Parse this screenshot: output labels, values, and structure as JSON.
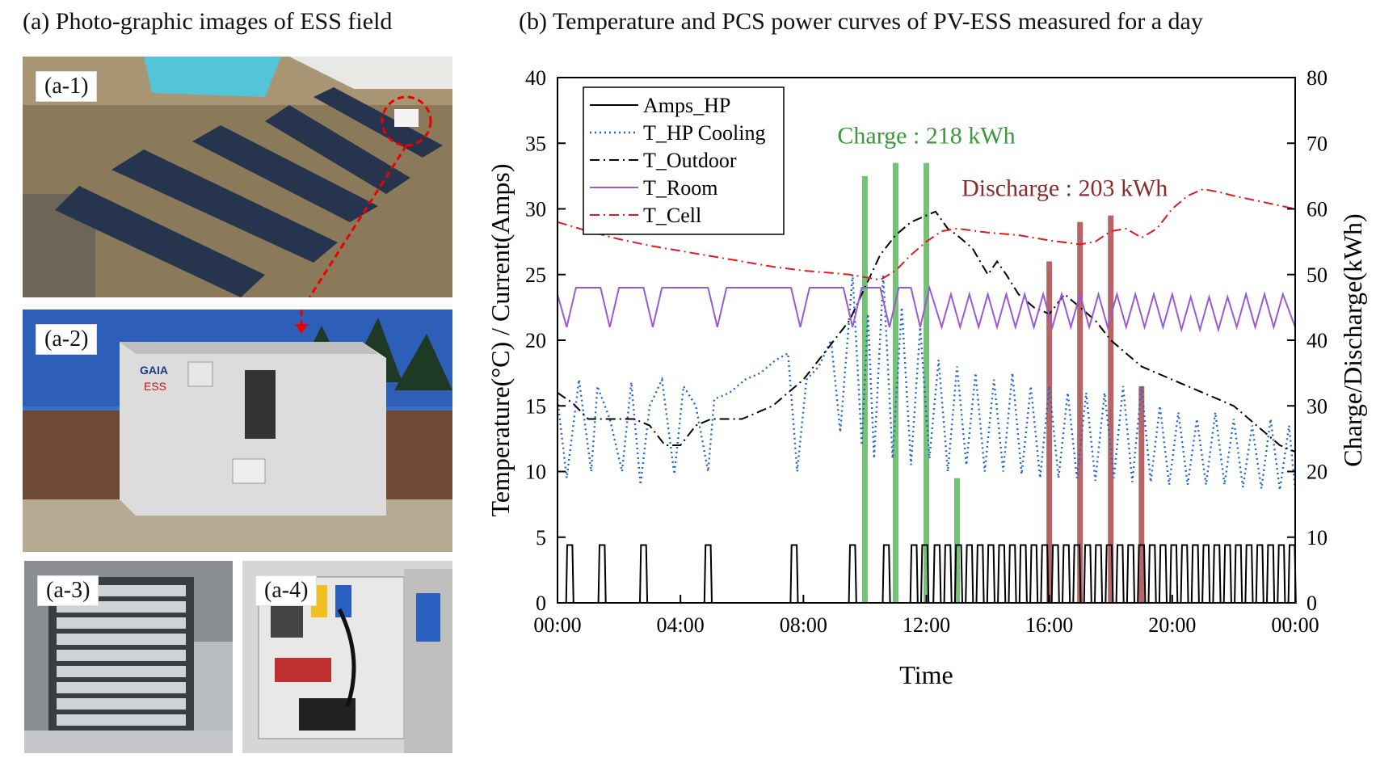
{
  "panel_a": {
    "title": "(a) Photo-graphic images of ESS field",
    "photos": [
      {
        "label": "(a-1)",
        "icon": "solar-farm-aerial-photo"
      },
      {
        "label": "(a-2)",
        "icon": "ess-container-photo",
        "brand": "GAIA",
        "text": "ESS"
      },
      {
        "label": "(a-3)",
        "icon": "battery-rack-photo"
      },
      {
        "label": "(a-4)",
        "icon": "control-panel-photo"
      }
    ]
  },
  "colors": {
    "amps_hp": "#000000",
    "t_hp_cooling": "#1f66d6",
    "t_outdoor": "#000000",
    "t_room": "#9b59d6",
    "t_cell": "#e8171b",
    "charge": "#5cb85c",
    "discharge": "#a84a4a"
  },
  "chart_data": {
    "type": "line",
    "title": "(b) Temperature and PCS power curves of PV-ESS measured for a day",
    "xlabel": "Time",
    "ylabel": "Temperature(°C) / Current(Amps)",
    "y2label": "Charge/Discharge(kWh)",
    "x_ticks": [
      "00:00",
      "04:00",
      "08:00",
      "12:00",
      "16:00",
      "20:00",
      "00:00"
    ],
    "xlim_hours": [
      0,
      24
    ],
    "ylim": [
      0,
      40
    ],
    "y_ticks": [
      "0",
      "5",
      "10",
      "15",
      "20",
      "25",
      "30",
      "35",
      "40"
    ],
    "y2lim": [
      0,
      80
    ],
    "y2_ticks": [
      "0",
      "10",
      "20",
      "30",
      "40",
      "50",
      "60",
      "70",
      "80"
    ],
    "legend_position": "top-left",
    "annotations": [
      {
        "text": "Charge : 218 kWh",
        "x": 12.0,
        "y": 35,
        "color": "#3a9a3a"
      },
      {
        "text": "Discharge :  203 kWh",
        "x": 16.5,
        "y": 31,
        "color": "#8b2b2b"
      }
    ],
    "series": [
      {
        "name": "Amps_HP",
        "style": "solid",
        "color": "#000000",
        "pulse_times": [
          0.4,
          1.45,
          2.8,
          4.9,
          7.7,
          9.6,
          10.7,
          11.6,
          11.95,
          12.35,
          12.7,
          13.05,
          13.4,
          13.75,
          14.1,
          14.45,
          14.8,
          15.15,
          15.5,
          15.85,
          16.2,
          16.55,
          16.9,
          17.25,
          17.6,
          17.95,
          18.3,
          18.65,
          19.0,
          19.35,
          19.7,
          20.05,
          20.4,
          20.75,
          21.1,
          21.45,
          21.8,
          22.15,
          22.5,
          22.85,
          23.2,
          23.55,
          23.9
        ],
        "pulse_value": 4.4
      },
      {
        "name": "T_HP Cooling",
        "style": "dotted",
        "color": "#1f66d6",
        "x": [
          0.0,
          0.3,
          0.7,
          1.1,
          1.3,
          1.7,
          2.1,
          2.4,
          2.7,
          3.0,
          3.4,
          3.8,
          4.1,
          4.5,
          4.9,
          5.1,
          5.6,
          6.1,
          6.6,
          7.1,
          7.5,
          7.8,
          8.1,
          8.5,
          8.9,
          9.2,
          9.6,
          9.9,
          10.1,
          10.3,
          10.6,
          10.9,
          11.2,
          11.5,
          11.8,
          12.1,
          12.4,
          12.7,
          13.0,
          13.3,
          13.6,
          13.9,
          14.2,
          14.5,
          14.8,
          15.1,
          15.4,
          15.7,
          16.0,
          16.3,
          16.6,
          16.9,
          17.2,
          17.5,
          17.8,
          18.1,
          18.4,
          18.7,
          19.0,
          19.3,
          19.6,
          19.9,
          20.2,
          20.5,
          20.8,
          21.1,
          21.4,
          21.7,
          22.0,
          22.3,
          22.6,
          22.9,
          23.2,
          23.5,
          23.8,
          24.0
        ],
        "y": [
          15.5,
          9.5,
          17.0,
          10.0,
          16.5,
          14.0,
          10.0,
          16.8,
          9.0,
          15.0,
          17.0,
          9.8,
          16.5,
          15.0,
          10.0,
          15.5,
          16.0,
          17.0,
          17.5,
          18.5,
          19.0,
          10.0,
          17.0,
          18.0,
          20.0,
          13.0,
          25.0,
          12.0,
          22.0,
          11.0,
          25.0,
          11.0,
          22.5,
          10.5,
          21.0,
          11.0,
          18.5,
          10.0,
          18.0,
          10.5,
          17.5,
          10.0,
          17.0,
          10.0,
          17.5,
          9.8,
          16.5,
          9.5,
          16.5,
          9.5,
          16.0,
          9.5,
          16.0,
          9.3,
          16.0,
          9.5,
          16.5,
          9.2,
          16.5,
          9.2,
          15.0,
          9.0,
          14.5,
          9.0,
          14.0,
          9.0,
          14.5,
          9.0,
          14.0,
          8.8,
          13.5,
          8.7,
          14.0,
          8.6,
          13.5,
          8.6
        ]
      },
      {
        "name": "T_Outdoor",
        "style": "dashdot",
        "color": "#000000",
        "x": [
          0.0,
          0.5,
          1.0,
          1.5,
          2.0,
          2.5,
          3.0,
          3.5,
          4.0,
          4.5,
          5.0,
          5.5,
          6.0,
          6.5,
          7.0,
          7.5,
          8.0,
          8.5,
          9.0,
          9.5,
          10.0,
          10.5,
          11.0,
          11.5,
          12.0,
          12.3,
          12.7,
          13.0,
          13.5,
          14.0,
          14.3,
          14.6,
          15.0,
          15.5,
          16.0,
          16.5,
          17.0,
          17.5,
          18.0,
          18.5,
          19.0,
          19.5,
          20.0,
          20.5,
          21.0,
          21.5,
          22.0,
          22.5,
          23.0,
          23.5,
          24.0
        ],
        "y": [
          16.0,
          15.2,
          14.0,
          14.0,
          14.0,
          14.0,
          13.5,
          12.0,
          12.0,
          13.5,
          14.0,
          14.0,
          14.0,
          14.5,
          15.0,
          16.0,
          17.0,
          18.5,
          20.0,
          21.5,
          24.0,
          26.5,
          28.0,
          29.0,
          29.5,
          29.8,
          28.5,
          28.0,
          27.0,
          25.0,
          26.0,
          25.0,
          23.5,
          22.5,
          22.0,
          23.5,
          22.5,
          21.5,
          20.0,
          19.0,
          18.0,
          17.5,
          17.0,
          16.5,
          16.0,
          15.5,
          15.0,
          14.0,
          13.0,
          12.0,
          11.5
        ]
      },
      {
        "name": "T_Room",
        "style": "solid",
        "color": "#9b59d6",
        "x": [
          0.0,
          0.3,
          0.6,
          1.4,
          1.7,
          2.0,
          2.8,
          3.1,
          3.4,
          4.9,
          5.2,
          5.5,
          7.6,
          7.9,
          8.2,
          9.3,
          9.6,
          9.9,
          10.5,
          10.8,
          11.1,
          11.5,
          11.8,
          12.1,
          12.5,
          12.8,
          13.1,
          13.4,
          13.7,
          14.0,
          14.3,
          14.6,
          14.9,
          15.2,
          15.5,
          15.8,
          16.1,
          16.4,
          16.7,
          17.0,
          17.3,
          17.6,
          17.9,
          18.2,
          18.5,
          18.8,
          19.1,
          19.4,
          19.7,
          20.0,
          20.3,
          20.6,
          20.9,
          21.2,
          21.5,
          21.8,
          22.1,
          22.4,
          22.7,
          23.0,
          23.3,
          23.6,
          24.0
        ],
        "y": [
          23.5,
          21.0,
          24.0,
          24.0,
          21.0,
          24.0,
          24.0,
          21.0,
          24.0,
          24.0,
          21.0,
          24.0,
          24.0,
          21.0,
          24.0,
          24.0,
          21.0,
          24.0,
          24.0,
          21.0,
          24.0,
          24.0,
          21.0,
          24.0,
          21.0,
          23.5,
          21.0,
          23.5,
          21.0,
          23.5,
          21.0,
          23.5,
          21.0,
          23.5,
          21.0,
          23.5,
          21.0,
          23.5,
          21.0,
          23.5,
          21.0,
          23.5,
          21.0,
          23.5,
          21.0,
          23.5,
          21.0,
          23.5,
          21.0,
          23.5,
          20.8,
          23.3,
          20.8,
          23.3,
          20.8,
          23.3,
          21.0,
          23.5,
          21.0,
          23.5,
          21.0,
          23.5,
          21.0
        ]
      },
      {
        "name": "T_Cell",
        "style": "dashdot",
        "color": "#e8171b",
        "x": [
          0.0,
          1.0,
          2.0,
          3.0,
          4.0,
          5.0,
          6.0,
          7.0,
          8.0,
          9.0,
          9.5,
          10.0,
          10.5,
          11.0,
          11.5,
          12.0,
          12.5,
          13.0,
          14.0,
          15.0,
          16.0,
          17.0,
          17.5,
          18.0,
          18.5,
          19.0,
          19.5,
          20.0,
          20.5,
          21.0,
          21.5,
          22.0,
          23.0,
          24.0
        ],
        "y": [
          29.0,
          28.3,
          27.7,
          27.2,
          26.8,
          26.4,
          26.0,
          25.6,
          25.3,
          25.1,
          25.0,
          24.8,
          24.6,
          25.3,
          26.5,
          27.5,
          28.3,
          28.5,
          28.2,
          28.0,
          27.6,
          27.3,
          27.5,
          28.3,
          28.5,
          27.8,
          28.5,
          30.0,
          31.0,
          31.5,
          31.3,
          31.0,
          30.5,
          30.0
        ]
      },
      {
        "name": "Charge",
        "axis": "y2",
        "color": "#5cb85c",
        "x": [
          10.0,
          11.0,
          12.0,
          13.0
        ],
        "values": [
          65,
          67,
          67,
          19
        ]
      },
      {
        "name": "Discharge",
        "axis": "y2",
        "color": "#a84a4a",
        "x": [
          16.0,
          17.0,
          18.0,
          19.0
        ],
        "values": [
          52,
          58,
          59,
          33
        ]
      }
    ]
  }
}
